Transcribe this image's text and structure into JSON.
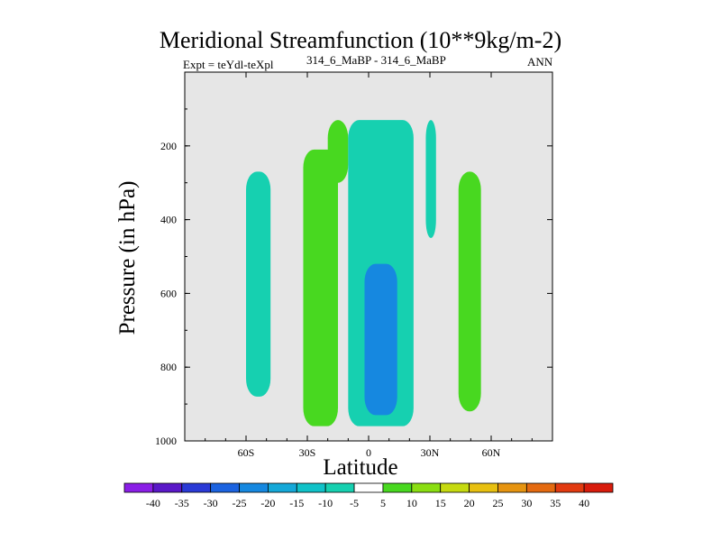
{
  "chart_data": {
    "type": "contour",
    "title": "Meridional Streamfunction (10**9kg/m-2)",
    "subtitle_left": "Expt = teYdl-teXpl",
    "subtitle_center": "314_6_MaBP - 314_6_MaBP",
    "subtitle_right": "ANN",
    "xlabel": "Latitude",
    "ylabel": "Pressure (in hPa)",
    "x_ticks": [
      "60S",
      "30S",
      "0",
      "30N",
      "60N"
    ],
    "y_ticks": [
      "200",
      "400",
      "600",
      "800",
      "1000"
    ],
    "xlim": [
      -90,
      90
    ],
    "ylim": [
      0,
      1000
    ],
    "colorbar": {
      "labels": [
        "-40",
        "-35",
        "-30",
        "-25",
        "-20",
        "-15",
        "-10",
        "-5",
        "5",
        "10",
        "15",
        "20",
        "25",
        "30",
        "35",
        "40"
      ],
      "colors": [
        "#8a1ee6",
        "#5a18c8",
        "#2a3ad6",
        "#1c63e0",
        "#1688e0",
        "#15a8d8",
        "#10c2c8",
        "#16d0b0",
        "#ffffff",
        "#48d820",
        "#8ade12",
        "#c6da10",
        "#e8c010",
        "#e69410",
        "#e46a10",
        "#e23a10",
        "#d81c0c"
      ]
    },
    "fields": [
      {
        "name": "cyan-cell-60S",
        "level": "-5",
        "lat": [
          -60,
          -48
        ],
        "p": [
          270,
          880
        ]
      },
      {
        "name": "green-cell-30S",
        "level": "5",
        "lat": [
          -32,
          -15
        ],
        "p": [
          210,
          960
        ]
      },
      {
        "name": "green-cell-upper-20S",
        "level": "5",
        "lat": [
          -20,
          -10
        ],
        "p": [
          130,
          300
        ]
      },
      {
        "name": "cyan-core-equator",
        "level": "-5",
        "lat": [
          -10,
          22
        ],
        "p": [
          130,
          960
        ]
      },
      {
        "name": "blue-core-equator",
        "level": "-20",
        "lat": [
          -2,
          14
        ],
        "p": [
          520,
          930
        ]
      },
      {
        "name": "cyan-upper-30N",
        "level": "-5",
        "lat": [
          28,
          33
        ],
        "p": [
          130,
          450
        ]
      },
      {
        "name": "green-cell-45N",
        "level": "5",
        "lat": [
          44,
          55
        ],
        "p": [
          270,
          920
        ]
      }
    ]
  }
}
